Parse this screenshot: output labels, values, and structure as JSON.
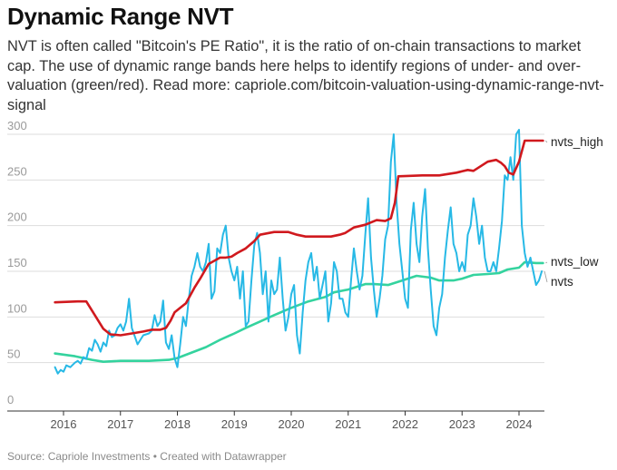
{
  "title": "Dynamic Range NVT",
  "subtitle": "NVT is often called \"Bitcoin's PE Ratio\", it is the ratio of on-chain transactions to market cap. The use of dynamic range bands here helps to identify regions of under- and over-valuation (green/red). Read more: capriole.com/bitcoin-valuation-using-dynamic-range-nvt-signal",
  "footer": "Source: Capriole Investments • Created with Datawrapper",
  "colors": {
    "high": "#d0191e",
    "low": "#34d39e",
    "nvts": "#27b9e6",
    "grid": "#dddddd"
  },
  "chart_data": {
    "type": "line",
    "title": "Dynamic Range NVT",
    "xlabel": "",
    "ylabel": "",
    "xlim": [
      2015.85,
      2024.45
    ],
    "ylim": [
      0,
      310
    ],
    "yticks": [
      0,
      50,
      100,
      150,
      200,
      250,
      300
    ],
    "xticks": [
      2016,
      2017,
      2018,
      2019,
      2020,
      2021,
      2022,
      2023,
      2024
    ],
    "grid": true,
    "legend": "inline-right",
    "series": [
      {
        "name": "nvts_high",
        "color": "#d0191e",
        "x": [
          2015.85,
          2016.25,
          2016.4,
          2016.55,
          2016.7,
          2016.82,
          2017.0,
          2017.2,
          2017.4,
          2017.55,
          2017.7,
          2017.8,
          2017.88,
          2017.95,
          2018.05,
          2018.15,
          2018.3,
          2018.4,
          2018.55,
          2018.75,
          2018.85,
          2018.95,
          2019.05,
          2019.2,
          2019.35,
          2019.45,
          2019.7,
          2019.95,
          2020.1,
          2020.25,
          2020.7,
          2020.85,
          2020.95,
          2021.1,
          2021.3,
          2021.5,
          2021.65,
          2021.75,
          2021.82,
          2021.88,
          2022.3,
          2022.6,
          2022.9,
          2023.1,
          2023.2,
          2023.45,
          2023.6,
          2023.68,
          2023.75,
          2023.82,
          2023.9,
          2024.0,
          2024.1,
          2024.2,
          2024.42
        ],
        "values": [
          116,
          117,
          117,
          102,
          87,
          81,
          80,
          82,
          84,
          86,
          86,
          88,
          96,
          105,
          110,
          115,
          132,
          142,
          158,
          165,
          165,
          166,
          170,
          175,
          183,
          190,
          193,
          193,
          190,
          188,
          188,
          190,
          192,
          198,
          201,
          206,
          205,
          208,
          225,
          254,
          255,
          255,
          258,
          261,
          260,
          270,
          272,
          269,
          265,
          258,
          256,
          270,
          293,
          293,
          293
        ]
      },
      {
        "name": "nvts_low",
        "color": "#34d39e",
        "x": [
          2015.85,
          2016.2,
          2016.5,
          2016.7,
          2017.0,
          2017.5,
          2017.85,
          2018.0,
          2018.25,
          2018.5,
          2018.75,
          2019.0,
          2019.2,
          2019.45,
          2019.7,
          2020.0,
          2020.3,
          2020.6,
          2020.75,
          2021.0,
          2021.3,
          2021.45,
          2021.7,
          2021.95,
          2022.2,
          2022.45,
          2022.6,
          2022.85,
          2023.0,
          2023.2,
          2023.45,
          2023.65,
          2023.8,
          2024.0,
          2024.1,
          2024.3,
          2024.42
        ],
        "values": [
          60,
          57,
          53,
          51,
          52,
          52,
          53,
          55,
          61,
          67,
          75,
          82,
          88,
          95,
          102,
          110,
          117,
          122,
          127,
          130,
          136,
          136,
          135,
          140,
          145,
          143,
          140,
          140,
          142,
          146,
          147,
          148,
          152,
          154,
          160,
          159,
          159
        ]
      },
      {
        "name": "nvts",
        "color": "#27b9e6",
        "x": [
          2015.85,
          2015.9,
          2015.95,
          2016.0,
          2016.05,
          2016.12,
          2016.2,
          2016.25,
          2016.3,
          2016.35,
          2016.4,
          2016.45,
          2016.5,
          2016.55,
          2016.6,
          2016.65,
          2016.7,
          2016.75,
          2016.8,
          2016.85,
          2016.9,
          2016.95,
          2017.0,
          2017.05,
          2017.1,
          2017.15,
          2017.2,
          2017.3,
          2017.4,
          2017.5,
          2017.55,
          2017.6,
          2017.65,
          2017.7,
          2017.75,
          2017.8,
          2017.85,
          2017.9,
          2017.95,
          2018.0,
          2018.05,
          2018.1,
          2018.15,
          2018.2,
          2018.25,
          2018.3,
          2018.35,
          2018.4,
          2018.45,
          2018.5,
          2018.55,
          2018.6,
          2018.65,
          2018.7,
          2018.75,
          2018.8,
          2018.85,
          2018.9,
          2018.95,
          2019.0,
          2019.05,
          2019.1,
          2019.15,
          2019.2,
          2019.25,
          2019.3,
          2019.35,
          2019.4,
          2019.45,
          2019.5,
          2019.55,
          2019.6,
          2019.65,
          2019.7,
          2019.75,
          2019.8,
          2019.85,
          2019.9,
          2019.95,
          2020.0,
          2020.05,
          2020.1,
          2020.15,
          2020.2,
          2020.25,
          2020.3,
          2020.35,
          2020.4,
          2020.45,
          2020.5,
          2020.55,
          2020.6,
          2020.65,
          2020.7,
          2020.75,
          2020.8,
          2020.85,
          2020.9,
          2020.95,
          2021.0,
          2021.05,
          2021.1,
          2021.15,
          2021.2,
          2021.25,
          2021.3,
          2021.35,
          2021.4,
          2021.45,
          2021.5,
          2021.55,
          2021.6,
          2021.65,
          2021.7,
          2021.75,
          2021.8,
          2021.85,
          2021.9,
          2021.95,
          2022.0,
          2022.05,
          2022.1,
          2022.15,
          2022.2,
          2022.25,
          2022.3,
          2022.35,
          2022.4,
          2022.45,
          2022.5,
          2022.55,
          2022.6,
          2022.65,
          2022.7,
          2022.75,
          2022.8,
          2022.85,
          2022.9,
          2022.95,
          2023.0,
          2023.05,
          2023.1,
          2023.15,
          2023.2,
          2023.25,
          2023.3,
          2023.35,
          2023.4,
          2023.45,
          2023.5,
          2023.55,
          2023.6,
          2023.65,
          2023.7,
          2023.75,
          2023.8,
          2023.85,
          2023.9,
          2023.95,
          2024.0,
          2024.05,
          2024.1,
          2024.15,
          2024.2,
          2024.25,
          2024.3,
          2024.35,
          2024.4
        ],
        "values": [
          45,
          38,
          42,
          40,
          47,
          45,
          50,
          52,
          49,
          56,
          54,
          66,
          63,
          75,
          70,
          62,
          72,
          68,
          85,
          78,
          80,
          88,
          92,
          85,
          95,
          120,
          88,
          70,
          80,
          82,
          85,
          102,
          90,
          95,
          118,
          72,
          65,
          80,
          55,
          45,
          70,
          100,
          90,
          120,
          145,
          155,
          170,
          155,
          150,
          160,
          180,
          120,
          128,
          175,
          170,
          190,
          200,
          165,
          150,
          140,
          155,
          120,
          150,
          90,
          95,
          140,
          178,
          192,
          170,
          125,
          150,
          95,
          140,
          125,
          130,
          165,
          120,
          85,
          100,
          125,
          135,
          80,
          60,
          105,
          140,
          160,
          170,
          140,
          155,
          120,
          135,
          150,
          95,
          115,
          160,
          150,
          120,
          120,
          105,
          100,
          140,
          175,
          150,
          130,
          145,
          190,
          230,
          165,
          130,
          100,
          120,
          145,
          185,
          200,
          270,
          300,
          225,
          180,
          150,
          120,
          110,
          195,
          225,
          180,
          160,
          210,
          240,
          175,
          130,
          90,
          80,
          110,
          125,
          165,
          195,
          220,
          180,
          170,
          150,
          160,
          150,
          190,
          200,
          230,
          210,
          180,
          200,
          165,
          150,
          150,
          160,
          150,
          175,
          205,
          255,
          250,
          275,
          250,
          300,
          305,
          200,
          170,
          155,
          165,
          150,
          135,
          140,
          150
        ]
      }
    ],
    "labels": [
      {
        "series": "nvts_high",
        "text": "nvts_high"
      },
      {
        "series": "nvts_low",
        "text": "nvts_low"
      },
      {
        "series": "nvts",
        "text": "nvts"
      }
    ]
  }
}
